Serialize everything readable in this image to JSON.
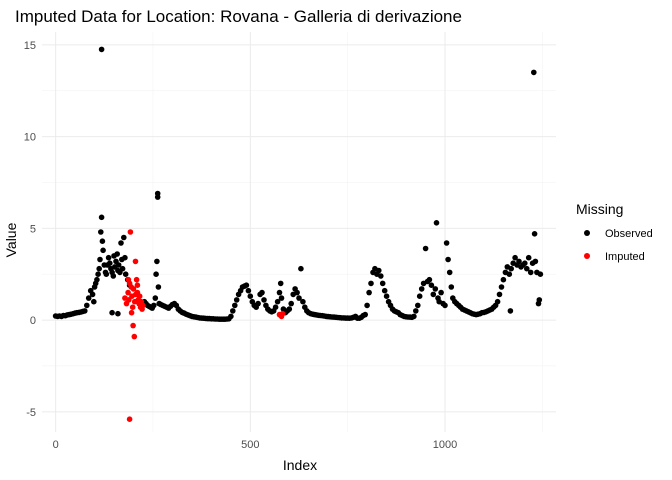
{
  "chart_data": {
    "type": "scatter",
    "title": "Imputed Data for Location: Rovana - Galleria di derivazione",
    "xlabel": "Index",
    "ylabel": "Value",
    "xlim": [
      -35,
      1285
    ],
    "ylim": [
      -6.1,
      15.7
    ],
    "x_ticks": [
      0,
      500,
      1000
    ],
    "y_ticks": [
      -5,
      0,
      5,
      10,
      15
    ],
    "grid": true,
    "legend": {
      "title": "Missing",
      "position": "right",
      "entries": [
        {
          "label": "Observed",
          "color": "#000000"
        },
        {
          "label": "Imputed",
          "color": "#ff0000"
        }
      ]
    },
    "series": [
      {
        "name": "Observed",
        "color": "#000000",
        "points": [
          [
            0,
            0.22
          ],
          [
            5,
            0.2
          ],
          [
            10,
            0.22
          ],
          [
            15,
            0.2
          ],
          [
            20,
            0.25
          ],
          [
            25,
            0.24
          ],
          [
            30,
            0.28
          ],
          [
            35,
            0.3
          ],
          [
            40,
            0.32
          ],
          [
            45,
            0.35
          ],
          [
            50,
            0.38
          ],
          [
            55,
            0.4
          ],
          [
            60,
            0.42
          ],
          [
            65,
            0.44
          ],
          [
            70,
            0.47
          ],
          [
            75,
            0.5
          ],
          [
            80,
            0.8
          ],
          [
            85,
            1.2
          ],
          [
            90,
            1.6
          ],
          [
            95,
            1.4
          ],
          [
            98,
            1.0
          ],
          [
            100,
            1.8
          ],
          [
            103,
            2.0
          ],
          [
            106,
            2.2
          ],
          [
            109,
            2.5
          ],
          [
            112,
            2.8
          ],
          [
            114,
            3.3
          ],
          [
            116,
            4.8
          ],
          [
            118,
            5.6
          ],
          [
            118,
            14.75
          ],
          [
            120,
            4.3
          ],
          [
            122,
            3.8
          ],
          [
            125,
            3.0
          ],
          [
            128,
            2.6
          ],
          [
            130,
            2.5
          ],
          [
            133,
            3.0
          ],
          [
            136,
            3.4
          ],
          [
            139,
            3.1
          ],
          [
            142,
            2.8
          ],
          [
            145,
            2.6
          ],
          [
            148,
            2.4
          ],
          [
            150,
            3.5
          ],
          [
            152,
            2.9
          ],
          [
            155,
            3.2
          ],
          [
            158,
            3.6
          ],
          [
            160,
            2.7
          ],
          [
            162,
            3.0
          ],
          [
            165,
            2.6
          ],
          [
            168,
            4.2
          ],
          [
            170,
            3.3
          ],
          [
            172,
            2.8
          ],
          [
            175,
            4.5
          ],
          [
            178,
            3.4
          ],
          [
            180,
            2.5
          ],
          [
            185,
            2.2
          ],
          [
            190,
            1.9
          ],
          [
            145,
            0.4
          ],
          [
            160,
            0.35
          ],
          [
            228,
            1.0
          ],
          [
            232,
            0.9
          ],
          [
            236,
            0.8
          ],
          [
            240,
            0.75
          ],
          [
            244,
            0.7
          ],
          [
            248,
            0.65
          ],
          [
            252,
            0.8
          ],
          [
            256,
            1.2
          ],
          [
            258,
            2.5
          ],
          [
            260,
            3.2
          ],
          [
            262,
            6.9
          ],
          [
            262,
            6.7
          ],
          [
            264,
            1.8
          ],
          [
            266,
            0.9
          ],
          [
            270,
            0.85
          ],
          [
            275,
            0.8
          ],
          [
            280,
            0.75
          ],
          [
            285,
            0.7
          ],
          [
            290,
            0.65
          ],
          [
            295,
            0.75
          ],
          [
            300,
            0.85
          ],
          [
            305,
            0.9
          ],
          [
            310,
            0.8
          ],
          [
            315,
            0.6
          ],
          [
            320,
            0.5
          ],
          [
            325,
            0.42
          ],
          [
            330,
            0.38
          ],
          [
            335,
            0.32
          ],
          [
            340,
            0.28
          ],
          [
            345,
            0.24
          ],
          [
            350,
            0.2
          ],
          [
            355,
            0.18
          ],
          [
            360,
            0.16
          ],
          [
            365,
            0.14
          ],
          [
            370,
            0.12
          ],
          [
            375,
            0.11
          ],
          [
            380,
            0.1
          ],
          [
            385,
            0.09
          ],
          [
            390,
            0.08
          ],
          [
            395,
            0.08
          ],
          [
            400,
            0.07
          ],
          [
            405,
            0.07
          ],
          [
            410,
            0.06
          ],
          [
            415,
            0.06
          ],
          [
            420,
            0.05
          ],
          [
            425,
            0.05
          ],
          [
            430,
            0.05
          ],
          [
            435,
            0.05
          ],
          [
            440,
            0.06
          ],
          [
            445,
            0.07
          ],
          [
            450,
            0.2
          ],
          [
            455,
            0.5
          ],
          [
            460,
            0.8
          ],
          [
            465,
            1.1
          ],
          [
            470,
            1.4
          ],
          [
            475,
            1.6
          ],
          [
            480,
            1.8
          ],
          [
            485,
            1.85
          ],
          [
            490,
            1.9
          ],
          [
            495,
            1.6
          ],
          [
            500,
            1.3
          ],
          [
            505,
            1.0
          ],
          [
            510,
            0.8
          ],
          [
            515,
            0.7
          ],
          [
            520,
            0.9
          ],
          [
            525,
            1.4
          ],
          [
            530,
            1.5
          ],
          [
            535,
            1.1
          ],
          [
            540,
            0.8
          ],
          [
            545,
            0.6
          ],
          [
            550,
            0.5
          ],
          [
            555,
            0.45
          ],
          [
            560,
            0.5
          ],
          [
            565,
            0.7
          ],
          [
            570,
            1.0
          ],
          [
            575,
            1.5
          ],
          [
            578,
            2.0
          ],
          [
            580,
            1.2
          ],
          [
            585,
            0.6
          ],
          [
            590,
            0.4
          ],
          [
            595,
            0.5
          ],
          [
            600,
            0.6
          ],
          [
            605,
            0.9
          ],
          [
            610,
            1.4
          ],
          [
            615,
            1.7
          ],
          [
            620,
            1.5
          ],
          [
            625,
            1.2
          ],
          [
            630,
            2.8
          ],
          [
            635,
            1.0
          ],
          [
            640,
            0.7
          ],
          [
            645,
            0.5
          ],
          [
            650,
            0.4
          ],
          [
            655,
            0.35
          ],
          [
            660,
            0.32
          ],
          [
            665,
            0.3
          ],
          [
            670,
            0.28
          ],
          [
            675,
            0.26
          ],
          [
            680,
            0.25
          ],
          [
            685,
            0.24
          ],
          [
            690,
            0.22
          ],
          [
            695,
            0.2
          ],
          [
            700,
            0.19
          ],
          [
            705,
            0.18
          ],
          [
            710,
            0.17
          ],
          [
            715,
            0.16
          ],
          [
            720,
            0.15
          ],
          [
            725,
            0.14
          ],
          [
            730,
            0.13
          ],
          [
            735,
            0.12
          ],
          [
            740,
            0.12
          ],
          [
            745,
            0.11
          ],
          [
            750,
            0.11
          ],
          [
            755,
            0.1
          ],
          [
            760,
            0.12
          ],
          [
            765,
            0.15
          ],
          [
            770,
            0.2
          ],
          [
            775,
            0.1
          ],
          [
            780,
            0.1
          ],
          [
            785,
            0.15
          ],
          [
            790,
            0.25
          ],
          [
            795,
            0.3
          ],
          [
            800,
            0.8
          ],
          [
            805,
            1.5
          ],
          [
            810,
            2.0
          ],
          [
            815,
            2.6
          ],
          [
            820,
            2.8
          ],
          [
            825,
            2.5
          ],
          [
            830,
            2.7
          ],
          [
            835,
            2.4
          ],
          [
            840,
            2.0
          ],
          [
            845,
            1.6
          ],
          [
            850,
            1.3
          ],
          [
            855,
            1.0
          ],
          [
            860,
            0.8
          ],
          [
            865,
            0.6
          ],
          [
            870,
            0.5
          ],
          [
            875,
            0.45
          ],
          [
            880,
            0.4
          ],
          [
            885,
            0.3
          ],
          [
            890,
            0.25
          ],
          [
            895,
            0.2
          ],
          [
            900,
            0.18
          ],
          [
            905,
            0.17
          ],
          [
            910,
            0.16
          ],
          [
            915,
            0.15
          ],
          [
            920,
            0.2
          ],
          [
            925,
            0.5
          ],
          [
            930,
            0.8
          ],
          [
            935,
            1.3
          ],
          [
            940,
            1.7
          ],
          [
            945,
            2.0
          ],
          [
            950,
            3.9
          ],
          [
            955,
            2.1
          ],
          [
            960,
            2.2
          ],
          [
            965,
            1.9
          ],
          [
            970,
            1.4
          ],
          [
            975,
            1.7
          ],
          [
            978,
            5.3
          ],
          [
            982,
            1.2
          ],
          [
            985,
            1.0
          ],
          [
            990,
            1.5
          ],
          [
            995,
            0.9
          ],
          [
            1000,
            0.8
          ],
          [
            1004,
            4.2
          ],
          [
            1008,
            3.3
          ],
          [
            1012,
            2.6
          ],
          [
            1016,
            1.8
          ],
          [
            1020,
            1.2
          ],
          [
            1025,
            1.0
          ],
          [
            1030,
            0.9
          ],
          [
            1035,
            0.8
          ],
          [
            1040,
            0.7
          ],
          [
            1045,
            0.6
          ],
          [
            1050,
            0.55
          ],
          [
            1055,
            0.5
          ],
          [
            1060,
            0.45
          ],
          [
            1065,
            0.4
          ],
          [
            1070,
            0.35
          ],
          [
            1075,
            0.32
          ],
          [
            1080,
            0.3
          ],
          [
            1085,
            0.32
          ],
          [
            1090,
            0.35
          ],
          [
            1095,
            0.4
          ],
          [
            1100,
            0.42
          ],
          [
            1105,
            0.45
          ],
          [
            1110,
            0.5
          ],
          [
            1115,
            0.55
          ],
          [
            1120,
            0.6
          ],
          [
            1125,
            0.7
          ],
          [
            1130,
            0.8
          ],
          [
            1135,
            1.0
          ],
          [
            1140,
            1.4
          ],
          [
            1145,
            1.8
          ],
          [
            1150,
            2.2
          ],
          [
            1155,
            2.6
          ],
          [
            1160,
            2.9
          ],
          [
            1165,
            2.5
          ],
          [
            1168,
            0.5
          ],
          [
            1170,
            2.8
          ],
          [
            1175,
            3.1
          ],
          [
            1180,
            3.4
          ],
          [
            1185,
            3.0
          ],
          [
            1190,
            3.2
          ],
          [
            1195,
            2.9
          ],
          [
            1200,
            3.0
          ],
          [
            1205,
            3.1
          ],
          [
            1210,
            2.8
          ],
          [
            1215,
            3.4
          ],
          [
            1220,
            2.6
          ],
          [
            1225,
            3.1
          ],
          [
            1228,
            13.5
          ],
          [
            1230,
            4.7
          ],
          [
            1232,
            3.2
          ],
          [
            1236,
            2.6
          ],
          [
            1240,
            0.9
          ],
          [
            1242,
            1.1
          ],
          [
            1245,
            2.5
          ]
        ]
      },
      {
        "name": "Imputed",
        "color": "#ff0000",
        "points": [
          [
            178,
            1.2
          ],
          [
            182,
            0.9
          ],
          [
            186,
            1.5
          ],
          [
            190,
            2.0
          ],
          [
            192,
            4.8
          ],
          [
            194,
            1.8
          ],
          [
            196,
            1.3
          ],
          [
            198,
            0.7
          ],
          [
            199,
            -0.3
          ],
          [
            200,
            1.7
          ],
          [
            202,
            -0.9
          ],
          [
            203,
            1.0
          ],
          [
            205,
            3.2
          ],
          [
            206,
            1.4
          ],
          [
            208,
            2.2
          ],
          [
            210,
            1.9
          ],
          [
            212,
            1.1
          ],
          [
            214,
            0.9
          ],
          [
            216,
            1.3
          ],
          [
            218,
            0.7
          ],
          [
            220,
            1.0
          ],
          [
            222,
            0.6
          ],
          [
            224,
            0.8
          ],
          [
            190,
            -5.4
          ],
          [
            188,
            1.1
          ],
          [
            195,
            0.4
          ],
          [
            187,
            2.2
          ],
          [
            210,
            1.5
          ],
          [
            575,
            0.3
          ],
          [
            580,
            0.2
          ],
          [
            583,
            0.35
          ]
        ]
      }
    ]
  }
}
